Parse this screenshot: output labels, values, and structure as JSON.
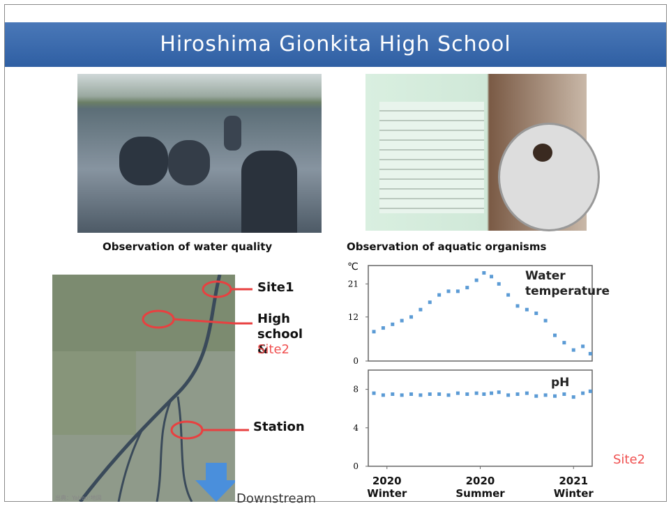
{
  "title": "Hiroshima Gionkita High School",
  "photos": [
    {
      "caption": "Observation of water quality"
    },
    {
      "caption": "Observation of aquatic organisms"
    }
  ],
  "map": {
    "site1": "Site1",
    "high_school": "High school &",
    "site2": "Site2",
    "station": "Station",
    "downstream": "Downstream",
    "source": "出典：Yahoo!地図"
  },
  "site_label": "Site2",
  "chart_data": [
    {
      "type": "scatter",
      "unit": "℃",
      "label": "Water temperature",
      "color": "#5b9bd5",
      "x": [
        0.3,
        0.8,
        1.3,
        1.8,
        2.3,
        2.8,
        3.3,
        3.8,
        4.3,
        4.8,
        5.3,
        5.8,
        6.2,
        6.6,
        7.0,
        7.5,
        8.0,
        8.5,
        9.0,
        9.5,
        10.0,
        10.5,
        11.0,
        11.5,
        11.9
      ],
      "values": [
        8,
        9,
        10,
        11,
        12,
        14,
        16,
        18,
        19,
        19,
        20,
        22,
        24,
        23,
        21,
        18,
        15,
        14,
        13,
        11,
        7,
        5,
        3,
        4,
        2
      ],
      "xlim": [
        0,
        12
      ],
      "ylim": [
        0,
        26
      ],
      "yticks": [
        0,
        12,
        21
      ]
    },
    {
      "type": "scatter",
      "label": "pH",
      "color": "#5b9bd5",
      "x": [
        0.3,
        0.8,
        1.3,
        1.8,
        2.3,
        2.8,
        3.3,
        3.8,
        4.3,
        4.8,
        5.3,
        5.8,
        6.2,
        6.6,
        7.0,
        7.5,
        8.0,
        8.5,
        9.0,
        9.5,
        10.0,
        10.5,
        11.0,
        11.5,
        11.9
      ],
      "values": [
        7.6,
        7.4,
        7.5,
        7.4,
        7.5,
        7.4,
        7.5,
        7.5,
        7.4,
        7.6,
        7.5,
        7.6,
        7.5,
        7.6,
        7.7,
        7.4,
        7.5,
        7.6,
        7.3,
        7.4,
        7.3,
        7.5,
        7.2,
        7.6,
        7.8
      ],
      "xlim": [
        0,
        12
      ],
      "ylim": [
        0,
        10
      ],
      "yticks": [
        0,
        4,
        8
      ],
      "xticks": [
        {
          "value": 1,
          "label": "2020 Winter"
        },
        {
          "value": 6,
          "label": "2020 Summer"
        },
        {
          "value": 11,
          "label": "2021 Winter"
        }
      ]
    }
  ]
}
